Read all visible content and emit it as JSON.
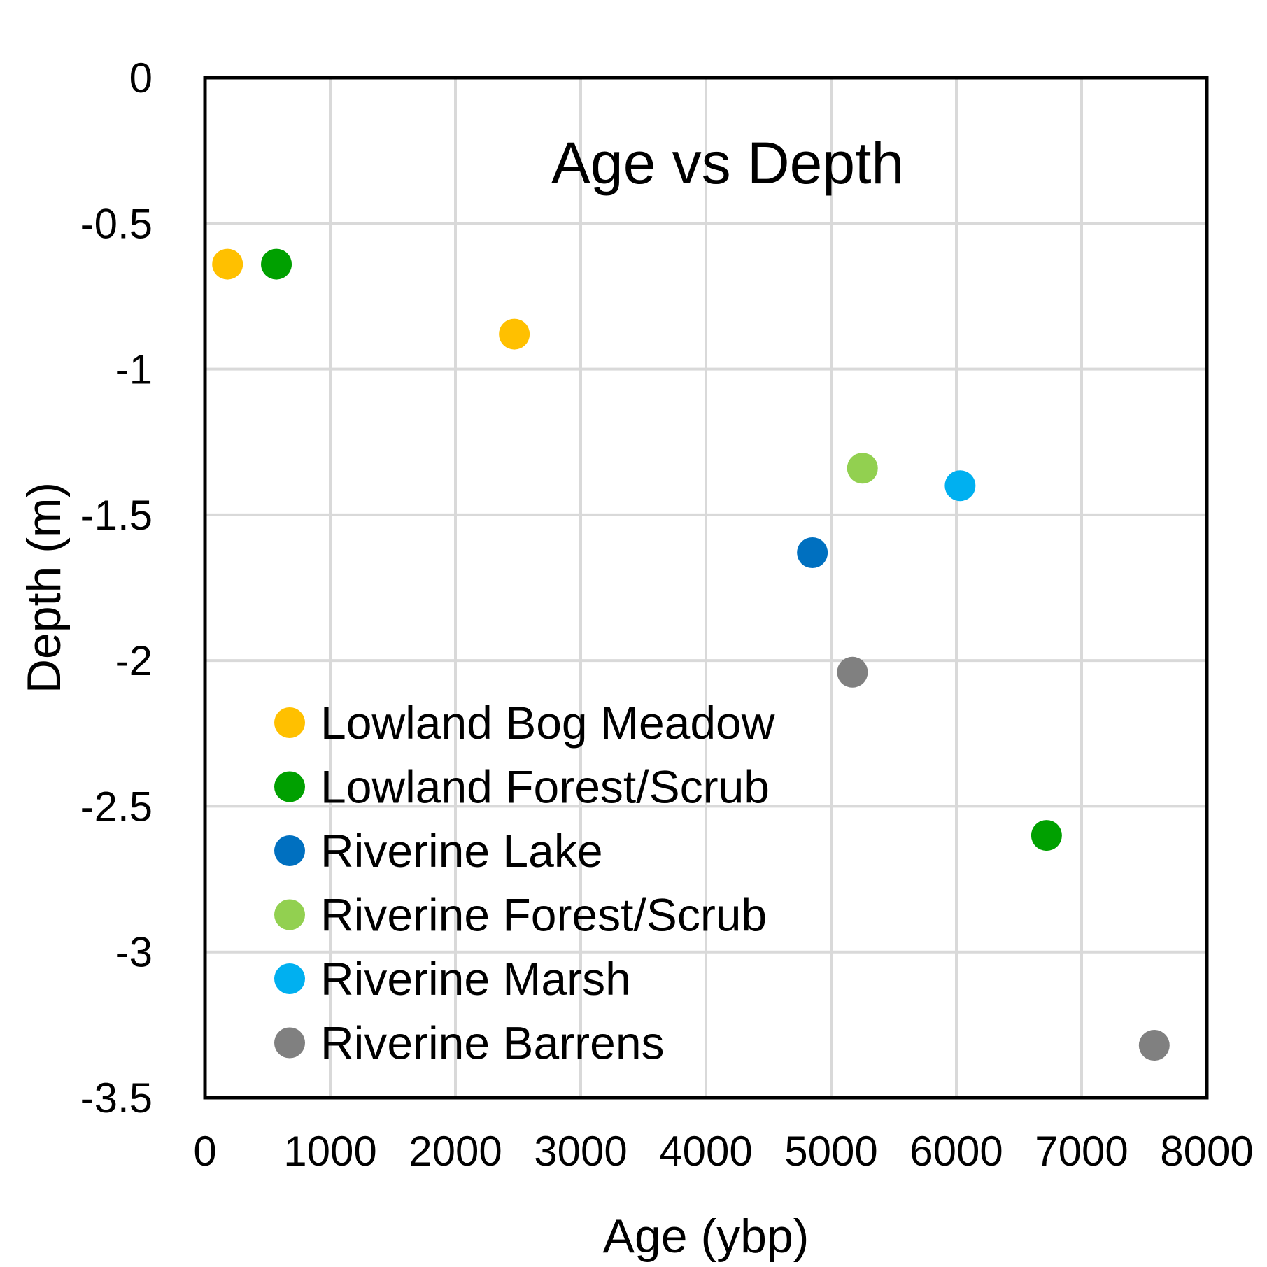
{
  "chart_data": {
    "type": "scatter",
    "title": "Age vs Depth",
    "xlabel": "Age (ybp)",
    "ylabel": "Depth (m)",
    "xlim": [
      0,
      8000
    ],
    "ylim": [
      -3.5,
      0
    ],
    "xticks": [
      0,
      1000,
      2000,
      3000,
      4000,
      5000,
      6000,
      7000,
      8000
    ],
    "yticks": [
      0,
      -0.5,
      -1,
      -1.5,
      -2,
      -2.5,
      -3,
      -3.5
    ],
    "xtick_labels": [
      "0",
      "1000",
      "2000",
      "3000",
      "4000",
      "5000",
      "6000",
      "7000",
      "8000"
    ],
    "ytick_labels": [
      "0",
      "-0.5",
      "-1",
      "-1.5",
      "-2",
      "-2.5",
      "-3",
      "-3.5"
    ],
    "grid": true,
    "legend_position": "bottom-left",
    "series": [
      {
        "name": "Lowland Bog Meadow",
        "color": "#FFC000",
        "points": [
          {
            "x": 180,
            "y": -0.64
          },
          {
            "x": 2470,
            "y": -0.88
          }
        ]
      },
      {
        "name": "Lowland Forest/Scrub",
        "color": "#00A000",
        "points": [
          {
            "x": 570,
            "y": -0.64
          },
          {
            "x": 6720,
            "y": -2.6
          }
        ]
      },
      {
        "name": "Riverine Lake",
        "color": "#0070C0",
        "points": [
          {
            "x": 4850,
            "y": -1.63
          }
        ]
      },
      {
        "name": "Riverine Forest/Scrub",
        "color": "#92D050",
        "points": [
          {
            "x": 5250,
            "y": -1.34
          }
        ]
      },
      {
        "name": "Riverine Marsh",
        "color": "#00B0F0",
        "points": [
          {
            "x": 6030,
            "y": -1.4
          }
        ]
      },
      {
        "name": "Riverine Barrens",
        "color": "#808080",
        "points": [
          {
            "x": 5170,
            "y": -2.04
          },
          {
            "x": 7580,
            "y": -3.32
          }
        ]
      }
    ]
  }
}
